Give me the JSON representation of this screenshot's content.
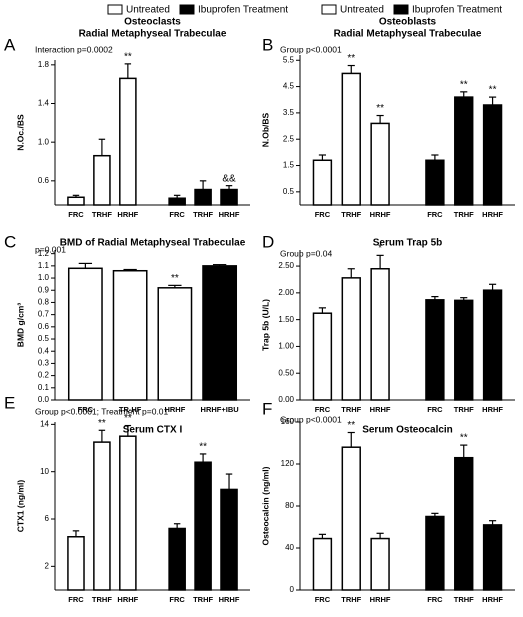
{
  "chart_data": [
    {
      "type": "bar",
      "panel_label": "A",
      "title": "Osteoclasts",
      "subtitle": "Radial Metaphyseal Trabeculae",
      "annotation": "Interaction p=0.0002",
      "y_label": "N.Oc./BS",
      "categories": [
        "FRC",
        "TRHF",
        "HRHF"
      ],
      "series": [
        {
          "name": "Untreated",
          "color": "#ffffff",
          "values": [
            0.43,
            0.86,
            1.66
          ],
          "errors": [
            0.02,
            0.17,
            0.15
          ],
          "significance": [
            null,
            null,
            "**"
          ]
        },
        {
          "name": "Ibuprofen Treatment",
          "color": "#000000",
          "values": [
            0.42,
            0.51,
            0.51
          ],
          "errors": [
            0.03,
            0.09,
            0.04
          ],
          "significance": [
            null,
            null,
            "&&"
          ]
        }
      ],
      "ylim": [
        0.35,
        1.85
      ],
      "yticks": [
        0.6,
        {
          "value": 1,
          "label": "1.0"
        },
        1.4,
        1.8
      ]
    },
    {
      "type": "bar",
      "panel_label": "B",
      "title": "Osteoblasts",
      "subtitle": "Radial Metaphyseal Trabeculae",
      "annotation": "Group p<0.0001",
      "y_label": "N.Ob/BS",
      "categories": [
        "FRC",
        "TRHF",
        "HRHF"
      ],
      "series": [
        {
          "name": "Untreated",
          "color": "#ffffff",
          "values": [
            1.7,
            5.0,
            3.1
          ],
          "errors": [
            0.2,
            0.3,
            0.3
          ],
          "significance": [
            null,
            "**",
            "**"
          ]
        },
        {
          "name": "Ibuprofen Treatment",
          "color": "#000000",
          "values": [
            1.7,
            4.1,
            3.8
          ],
          "errors": [
            0.2,
            0.2,
            0.3
          ],
          "significance": [
            null,
            "**",
            "**"
          ]
        }
      ],
      "ylim": [
        0,
        5.7
      ],
      "yticks": [
        0.5,
        1.5,
        2.5,
        3.5,
        4.5,
        5.5
      ]
    },
    {
      "type": "bar",
      "panel_label": "C",
      "title": "BMD of Radial Metaphyseal Trabeculae",
      "annotation": "p=0.001",
      "y_label": "BMD g/cm³",
      "categories": [
        "FRC",
        "TR-HF",
        "HRHF",
        "HRHF+IBU"
      ],
      "values": [
        1.08,
        1.06,
        0.92,
        1.1
      ],
      "errors": [
        0.04,
        0.01,
        0.02,
        0.01
      ],
      "significance": [
        null,
        null,
        "**",
        null
      ],
      "colors": [
        "#ffffff",
        "#ffffff",
        "#ffffff",
        "#000000"
      ],
      "ylim": [
        0,
        1.23
      ],
      "yticks": [
        {
          "value": 0,
          "label": "0.0"
        },
        0.1,
        0.2,
        0.3,
        0.4,
        0.5,
        0.6,
        0.7,
        0.8,
        0.9,
        {
          "value": 1,
          "label": "1.0"
        },
        1.1,
        1.2
      ]
    },
    {
      "type": "bar",
      "panel_label": "D",
      "title": "Serum Trap 5b",
      "annotation": "Group p=0.04",
      "y_label": "Trap 5b (U/L)",
      "categories": [
        "FRC",
        "TRHF",
        "HRHF"
      ],
      "series": [
        {
          "name": "Untreated",
          "color": "#ffffff",
          "values": [
            1.62,
            2.28,
            2.45
          ],
          "errors": [
            0.1,
            0.17,
            0.25
          ],
          "significance": [
            null,
            null,
            "*"
          ]
        },
        {
          "name": "Ibuprofen Treatment",
          "color": "#000000",
          "values": [
            1.87,
            1.86,
            2.05
          ],
          "errors": [
            0.06,
            0.05,
            0.11
          ],
          "significance": [
            null,
            null,
            null
          ]
        }
      ],
      "ylim": [
        0,
        2.8
      ],
      "yticks": [
        {
          "value": 0,
          "label": "0.00"
        },
        {
          "value": 0.5,
          "label": "0.50"
        },
        {
          "value": 1,
          "label": "1.00"
        },
        {
          "value": 1.5,
          "label": "1.50"
        },
        {
          "value": 2,
          "label": "2.00"
        },
        {
          "value": 2.5,
          "label": "2.50"
        }
      ]
    },
    {
      "type": "bar",
      "panel_label": "E",
      "title": "Serum CTX I",
      "annotation": "Group p<0.0001; Treatment p=0.01",
      "y_label": "CTX1 (ng/ml)",
      "categories": [
        "FRC",
        "TRHF",
        "HRHF"
      ],
      "series": [
        {
          "name": "Untreated",
          "color": "#ffffff",
          "values": [
            4.5,
            12.5,
            13.0
          ],
          "errors": [
            0.5,
            1.0,
            0.9
          ],
          "significance": [
            null,
            "**",
            "**"
          ]
        },
        {
          "name": "Ibuprofen Treatment",
          "color": "#000000",
          "values": [
            5.2,
            10.8,
            8.5
          ],
          "errors": [
            0.4,
            0.7,
            1.3
          ],
          "significance": [
            null,
            "**",
            null
          ]
        }
      ],
      "ylim": [
        0,
        14.2
      ],
      "yticks": [
        2,
        6,
        10,
        14
      ]
    },
    {
      "type": "bar",
      "panel_label": "F",
      "title": "Serum Osteocalcin",
      "annotation": "Group p<0.0001",
      "y_label": "Osteocalcin (ng/ml)",
      "categories": [
        "FRC",
        "TRHF",
        "HRHF"
      ],
      "series": [
        {
          "name": "Untreated",
          "color": "#ffffff",
          "values": [
            49,
            136,
            49
          ],
          "errors": [
            4,
            14,
            5
          ],
          "significance": [
            null,
            "**",
            null
          ]
        },
        {
          "name": "Ibuprofen Treatment",
          "color": "#000000",
          "values": [
            70,
            126,
            62
          ],
          "errors": [
            3,
            12,
            4
          ],
          "significance": [
            null,
            "**",
            null
          ]
        }
      ],
      "ylim": [
        0,
        160
      ],
      "yticks": [
        0,
        40,
        80,
        120,
        160
      ]
    }
  ]
}
